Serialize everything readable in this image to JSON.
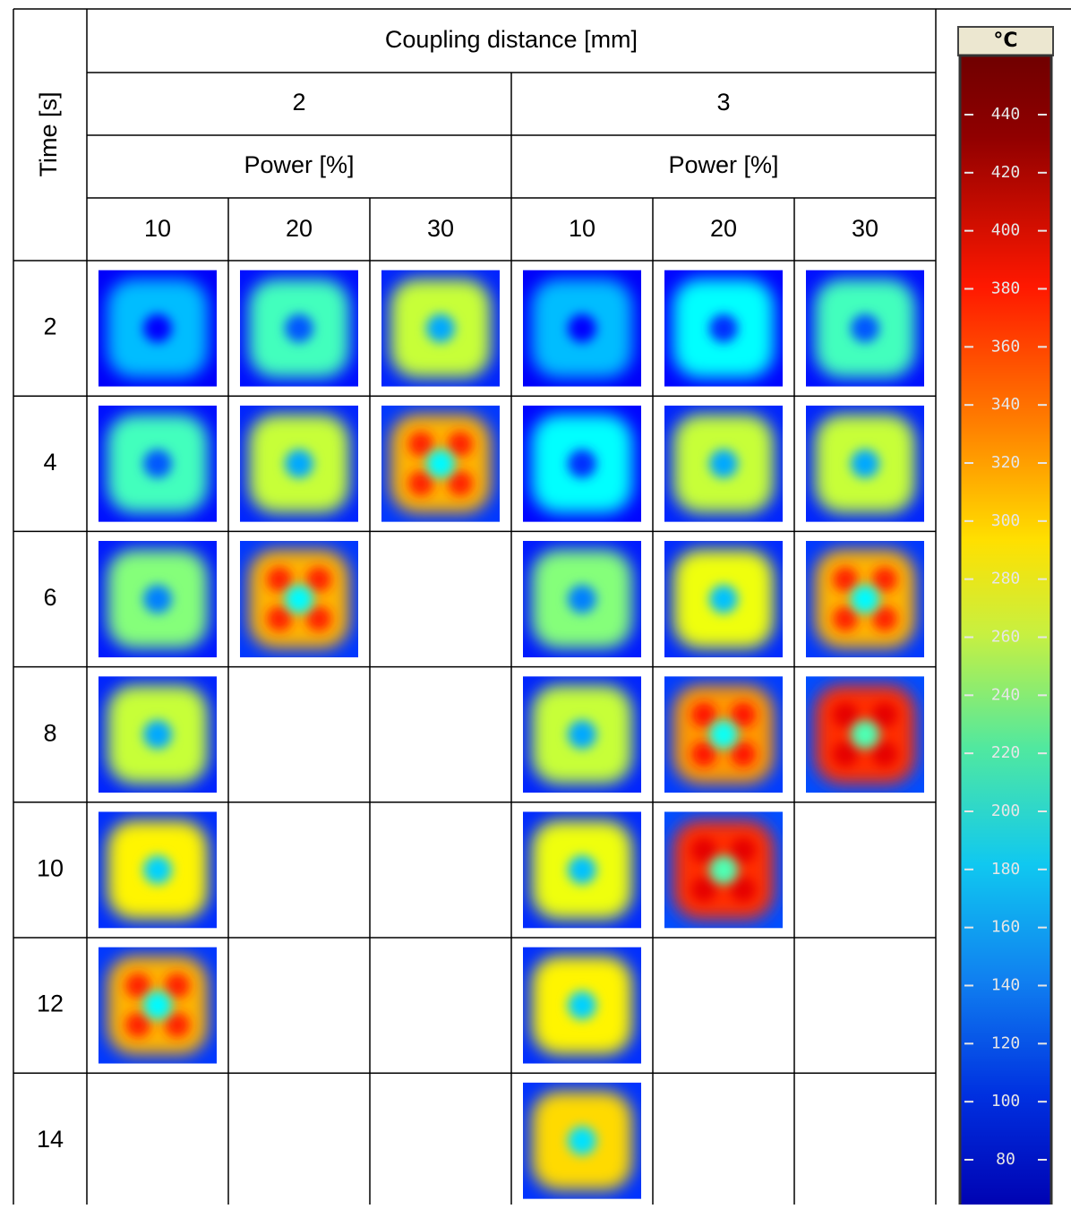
{
  "header": {
    "row_axis": "Time [s]",
    "column_axis": "Coupling distance [mm]"
  },
  "groups": [
    {
      "label": "2",
      "sub": "Power [%]",
      "columns": [
        "10",
        "20",
        "30"
      ]
    },
    {
      "label": "3",
      "sub": "Power [%]",
      "columns": [
        "10",
        "20",
        "30"
      ]
    }
  ],
  "rows": [
    "2",
    "4",
    "6",
    "8",
    "10",
    "12",
    "14"
  ],
  "colorbar": {
    "unit": "°C",
    "ticks": [
      440,
      420,
      400,
      380,
      360,
      340,
      320,
      300,
      280,
      260,
      240,
      220,
      200,
      180,
      160,
      140,
      120,
      100,
      80
    ]
  }
}
